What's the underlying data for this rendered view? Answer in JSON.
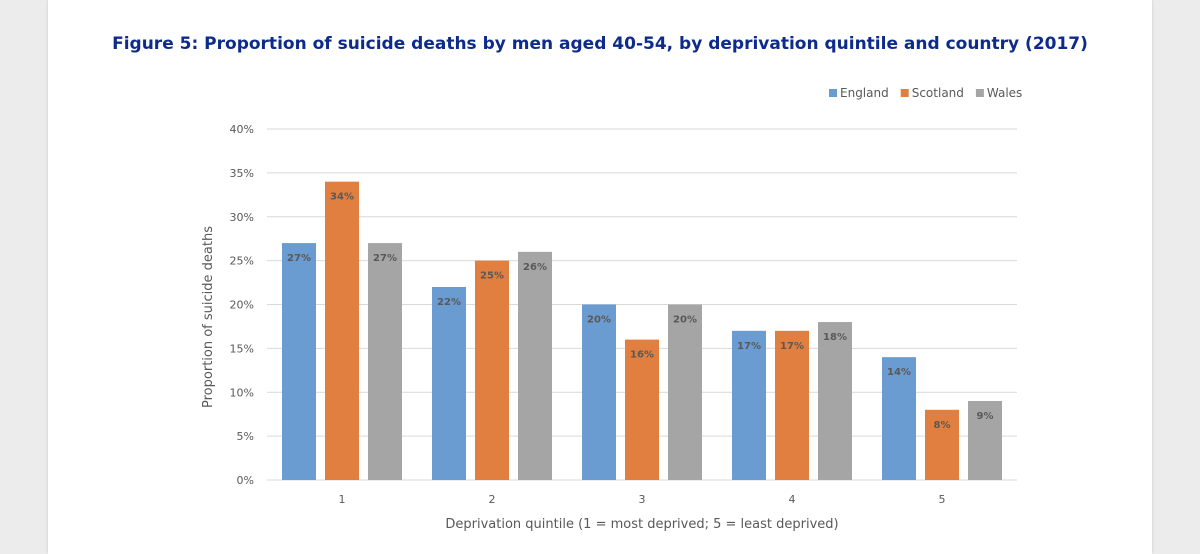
{
  "title": "Figure 5: Proportion of suicide deaths by men aged 40-54, by deprivation quintile and country (2017)",
  "chart_data": {
    "type": "bar",
    "title": "Figure 5: Proportion of suicide deaths by men aged 40-54, by deprivation quintile and country (2017)",
    "xlabel": "Deprivation quintile (1 = most deprived; 5 = least deprived)",
    "ylabel": "Proportion of suicide deaths",
    "categories": [
      "1",
      "2",
      "3",
      "4",
      "5"
    ],
    "ylim": [
      0,
      40
    ],
    "yticks": [
      "0%",
      "5%",
      "10%",
      "15%",
      "20%",
      "25%",
      "30%",
      "35%",
      "40%"
    ],
    "grid": true,
    "legend_position": "top-right",
    "series": [
      {
        "name": "England",
        "color": "#6a9bd1",
        "values": [
          27,
          22,
          20,
          17,
          14
        ],
        "labels": [
          "27%",
          "22%",
          "20%",
          "17%",
          "14%"
        ]
      },
      {
        "name": "Scotland",
        "color": "#e07f3f",
        "values": [
          34,
          25,
          16,
          17,
          8
        ],
        "labels": [
          "34%",
          "25%",
          "16%",
          "17%",
          "8%"
        ]
      },
      {
        "name": "Wales",
        "color": "#a5a5a5",
        "values": [
          27,
          26,
          20,
          18,
          9
        ],
        "labels": [
          "27%",
          "26%",
          "20%",
          "18%",
          "9%"
        ]
      }
    ]
  }
}
